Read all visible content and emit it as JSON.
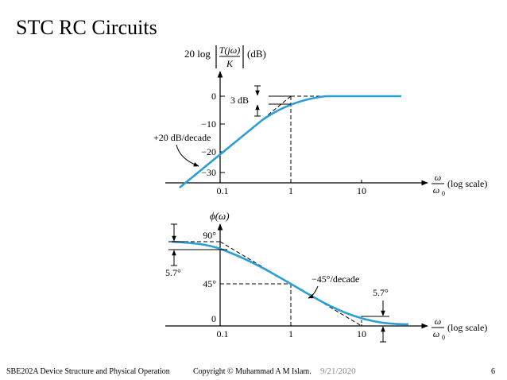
{
  "slide": {
    "title": "STC RC Circuits",
    "footer_left": "SBE202A Device Structure and Physical Operation",
    "footer_center": "Copyright © Muhammad A M Islam.",
    "footer_date": "9/21/2020",
    "page_number": "6"
  },
  "colors": {
    "curve": "#2a9fd6",
    "ink": "#000000"
  },
  "magnitude_plot": {
    "ylabel_prefix": "20 log",
    "ylabel_num": "T(jω)",
    "ylabel_den": "K",
    "ylabel_unit": "(dB)",
    "y_ticks": [
      "0",
      "−10",
      "−20",
      "−30"
    ],
    "x_ticks": [
      "0.1",
      "1",
      "10"
    ],
    "x_label_num": "ω",
    "x_label_den": "ω",
    "x_label_den_sub": "0",
    "x_scale": "(log scale)",
    "annotation_3db": "3 dB",
    "annotation_slope": "+20 dB/decade"
  },
  "phase_plot": {
    "ylabel": "ϕ(ω)",
    "y_ticks": [
      "90°",
      "45°",
      "0"
    ],
    "x_ticks": [
      "0.1",
      "1",
      "10"
    ],
    "x_label_num": "ω",
    "x_label_den": "ω",
    "x_label_den_sub": "0",
    "x_scale": "(log scale)",
    "annotation_left": "5.7°",
    "annotation_right": "5.7°",
    "annotation_slope": "−45°/decade"
  }
}
